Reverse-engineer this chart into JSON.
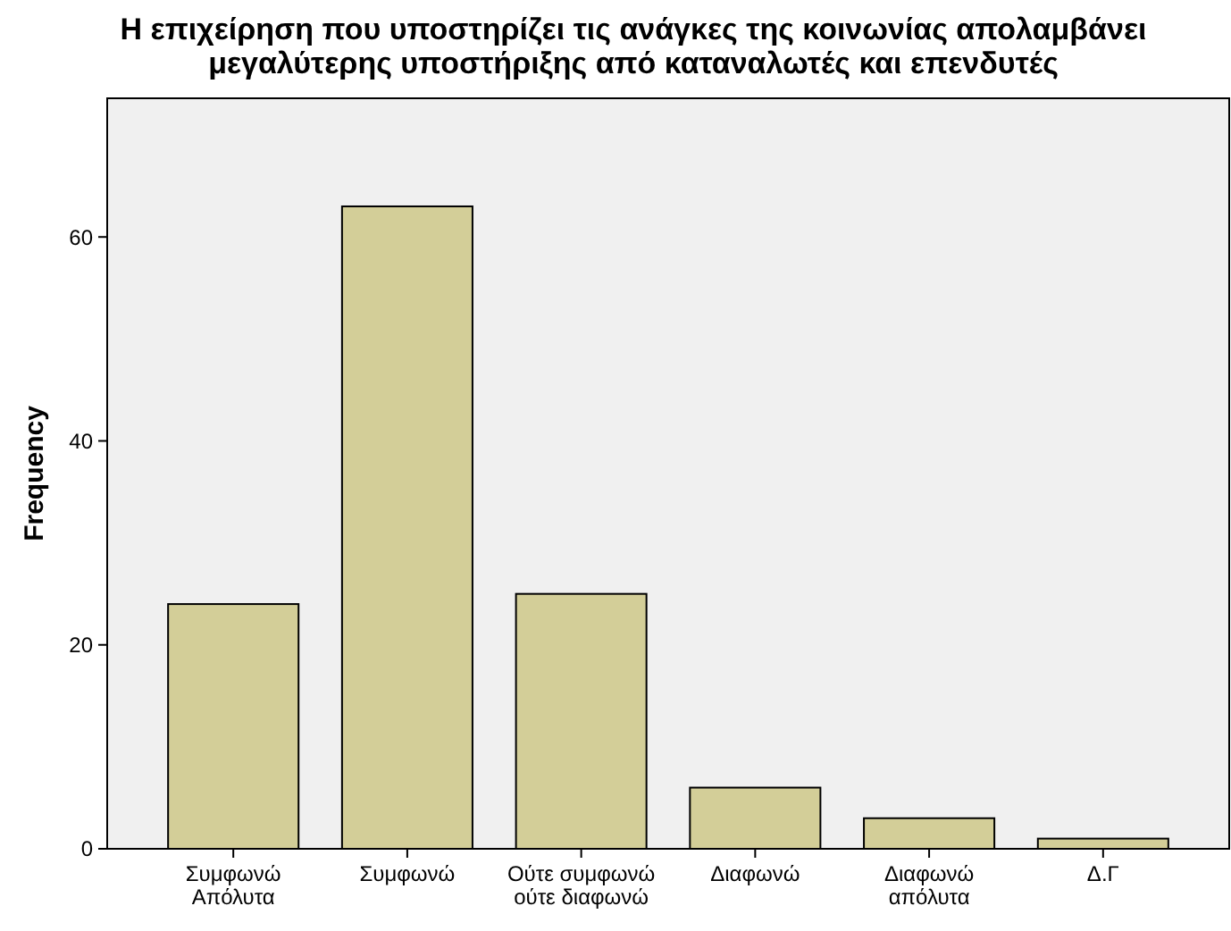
{
  "chart_data": {
    "type": "bar",
    "title": "Η επιχείρηση που υποστηρίζει τις ανάγκες της κοινωνίας απολαμβάνει\nμεγαλύτερης υποστήριξης από καταναλωτές και επενδυτές",
    "ylabel": "Frequency",
    "categories": [
      "Συμφωνώ\nΑπόλυτα",
      "Συμφωνώ",
      "Ούτε συμφωνώ\nούτε διαφωνώ",
      "Διαφωνώ",
      "Διαφωνώ\nαπόλυτα",
      "Δ.Γ"
    ],
    "values": [
      24,
      63,
      25,
      6,
      3,
      1
    ],
    "color": "#d3ce98",
    "ylim": [
      0,
      73.6
    ],
    "yticks": [
      0,
      20,
      40,
      60
    ],
    "grid": false
  }
}
